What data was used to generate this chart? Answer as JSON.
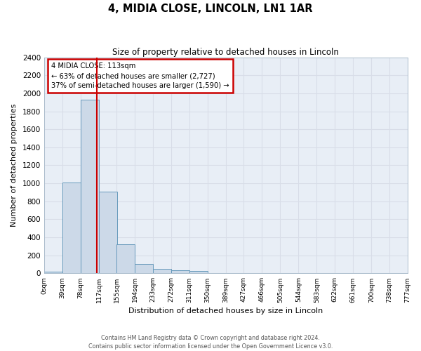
{
  "title": "4, MIDIA CLOSE, LINCOLN, LN1 1AR",
  "subtitle": "Size of property relative to detached houses in Lincoln",
  "xlabel": "Distribution of detached houses by size in Lincoln",
  "ylabel": "Number of detached properties",
  "bar_color": "#ccd9e8",
  "bar_edge_color": "#6699bb",
  "background_color": "#e8eef6",
  "grid_color": "#d8dde8",
  "bin_labels": [
    "0sqm",
    "39sqm",
    "78sqm",
    "117sqm",
    "155sqm",
    "194sqm",
    "233sqm",
    "272sqm",
    "311sqm",
    "350sqm",
    "389sqm",
    "427sqm",
    "466sqm",
    "505sqm",
    "544sqm",
    "583sqm",
    "622sqm",
    "661sqm",
    "700sqm",
    "738sqm",
    "777sqm"
  ],
  "bin_edges": [
    0,
    39,
    78,
    117,
    155,
    194,
    233,
    272,
    311,
    350,
    389,
    427,
    466,
    505,
    544,
    583,
    622,
    661,
    700,
    738,
    777
  ],
  "bar_heights": [
    20,
    1010,
    1930,
    910,
    320,
    105,
    50,
    30,
    25,
    0,
    0,
    0,
    0,
    0,
    0,
    0,
    0,
    0,
    0,
    0
  ],
  "ylim": [
    0,
    2400
  ],
  "yticks": [
    0,
    200,
    400,
    600,
    800,
    1000,
    1200,
    1400,
    1600,
    1800,
    2000,
    2200,
    2400
  ],
  "red_line_x": 113,
  "annotation_line1": "4 MIDIA CLOSE: 113sqm",
  "annotation_line2": "← 63% of detached houses are smaller (2,727)",
  "annotation_line3": "37% of semi-detached houses are larger (1,590) →",
  "annotation_box_color": "#ffffff",
  "annotation_box_edge": "#cc0000",
  "footer_line1": "Contains HM Land Registry data © Crown copyright and database right 2024.",
  "footer_line2": "Contains public sector information licensed under the Open Government Licence v3.0."
}
